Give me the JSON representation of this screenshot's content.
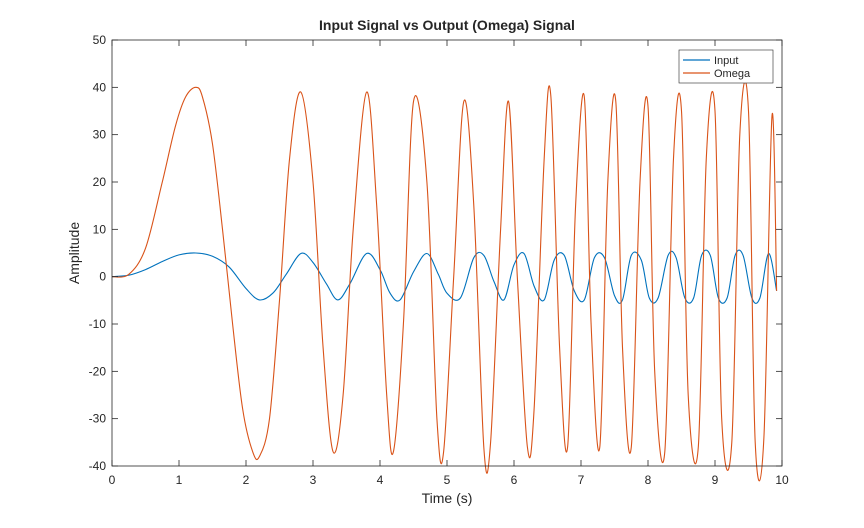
{
  "chart_data": {
    "type": "line",
    "title": "Input Signal vs Output (Omega) Signal",
    "xlabel": "Time (s)",
    "ylabel": "Amplitude",
    "xlim": [
      0,
      10
    ],
    "ylim": [
      -40,
      50
    ],
    "xticks": [
      "0",
      "1",
      "2",
      "3",
      "4",
      "5",
      "6",
      "7",
      "8",
      "9",
      "10"
    ],
    "yticks": [
      "-40",
      "-30",
      "-20",
      "-10",
      "0",
      "10",
      "20",
      "30",
      "40",
      "50"
    ],
    "grid": false,
    "legend_position": "top-right",
    "series": [
      {
        "name": "Input",
        "color": "#0072BD",
        "x": [
          0,
          0.25,
          0.5,
          0.75,
          1.0,
          1.25,
          1.5,
          1.75,
          2.0,
          2.2,
          2.4,
          2.6,
          2.82,
          3.0,
          3.2,
          3.37,
          3.55,
          3.8,
          4.0,
          4.15,
          4.3,
          4.5,
          4.7,
          4.87,
          5.0,
          5.2,
          5.4,
          5.55,
          5.7,
          5.85,
          6.0,
          6.15,
          6.3,
          6.45,
          6.6,
          6.75,
          6.9,
          7.05,
          7.2,
          7.35,
          7.5,
          7.62,
          7.75,
          7.9,
          8.02,
          8.15,
          8.3,
          8.42,
          8.55,
          8.68,
          8.8,
          8.93,
          9.05,
          9.18,
          9.3,
          9.42,
          9.55,
          9.67,
          9.8,
          9.92
        ],
        "y": [
          0,
          0.3,
          1.5,
          3.2,
          4.6,
          5.0,
          4.3,
          2.0,
          -2.5,
          -4.9,
          -3.5,
          0.5,
          4.9,
          3.0,
          -1.5,
          -4.9,
          -1.5,
          4.9,
          1.5,
          -3.5,
          -4.9,
          1.0,
          4.9,
          0.5,
          -3.5,
          -4.5,
          4.0,
          4.5,
          -1.0,
          -4.9,
          2.5,
          4.9,
          -2.0,
          -4.9,
          3.5,
          4.5,
          -3.0,
          -4.9,
          4.0,
          4.0,
          -4.0,
          -4.9,
          4.5,
          3.5,
          -4.5,
          -4.5,
          4.5,
          4.0,
          -4.5,
          -4.5,
          4.5,
          4.5,
          -4.5,
          -4.5,
          4.5,
          4.5,
          -4.5,
          -4.5,
          4.9,
          -3.0
        ]
      },
      {
        "name": "Omega",
        "color": "#D95319",
        "x": [
          0,
          0.25,
          0.5,
          0.75,
          0.95,
          1.1,
          1.25,
          1.35,
          1.5,
          1.65,
          1.8,
          1.95,
          2.1,
          2.2,
          2.35,
          2.5,
          2.65,
          2.82,
          3.0,
          3.15,
          3.3,
          3.45,
          3.6,
          3.8,
          3.95,
          4.1,
          4.2,
          4.35,
          4.5,
          4.7,
          4.85,
          4.95,
          5.1,
          5.25,
          5.4,
          5.55,
          5.65,
          5.8,
          5.92,
          6.05,
          6.2,
          6.3,
          6.45,
          6.55,
          6.68,
          6.8,
          6.92,
          7.05,
          7.15,
          7.28,
          7.4,
          7.52,
          7.62,
          7.75,
          7.88,
          8.0,
          8.1,
          8.25,
          8.38,
          8.5,
          8.6,
          8.75,
          8.87,
          9.0,
          9.1,
          9.25,
          9.37,
          9.5,
          9.6,
          9.73,
          9.85,
          9.92
        ],
        "y": [
          0,
          0.5,
          6,
          20,
          32,
          38,
          40,
          38,
          28,
          10,
          -10,
          -28,
          -37,
          -38,
          -30,
          -5,
          25,
          39,
          20,
          -15,
          -37,
          -25,
          10,
          39,
          15,
          -25,
          -37,
          -10,
          37,
          20,
          -30,
          -37,
          0,
          37,
          15,
          -36,
          -35,
          10,
          37,
          0,
          -36,
          -28,
          25,
          38,
          -15,
          -36,
          15,
          38,
          -10,
          -36,
          20,
          37,
          -15,
          -36,
          20,
          36,
          -20,
          -37,
          25,
          35,
          -25,
          -36,
          25,
          35,
          -30,
          -35,
          30,
          35,
          -35,
          -34,
          34,
          -3
        ]
      }
    ]
  }
}
